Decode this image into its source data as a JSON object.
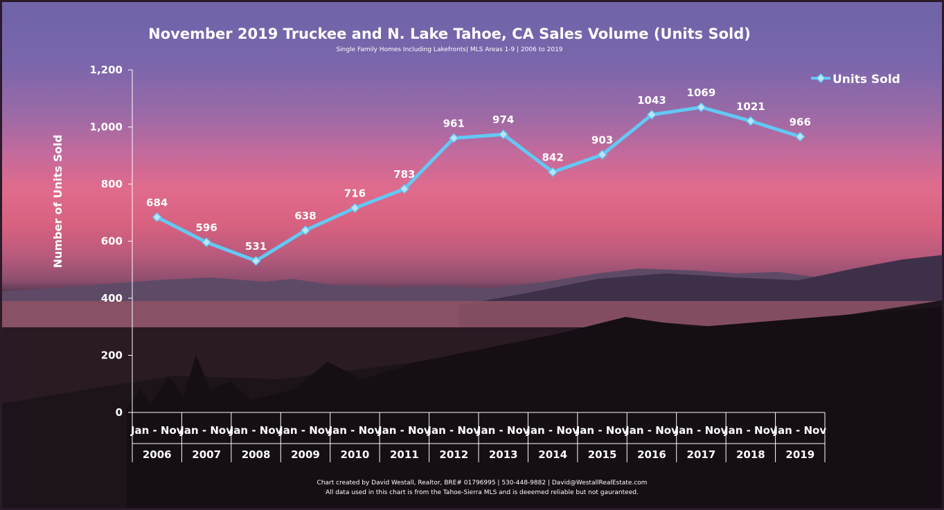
{
  "colors": {
    "line": "#63c8f4",
    "marker_fill": "#b9e6f8",
    "marker_stroke": "#63c8f4",
    "axis": "#ffffff"
  },
  "chart_data": {
    "type": "line",
    "title": "November 2019 Truckee and N. Lake Tahoe, CA Sales Volume (Units Sold)",
    "subtitle": "Single Family Homes Including Lakefronts| MLS Areas 1-9 | 2006 to 2019",
    "ylabel": "Number of Units Sold",
    "xlabel": "",
    "ylim": [
      0,
      1200
    ],
    "yticks": [
      0,
      200,
      400,
      600,
      800,
      1000,
      1200
    ],
    "ytick_labels": [
      "0",
      "200",
      "400",
      "600",
      "800",
      "1,000",
      "1,200"
    ],
    "period_label": "Jan - Nov",
    "categories": [
      "2006",
      "2007",
      "2008",
      "2009",
      "2010",
      "2011",
      "2012",
      "2013",
      "2014",
      "2015",
      "2016",
      "2017",
      "2018",
      "2019"
    ],
    "series": [
      {
        "name": "Units Sold",
        "marker": "diamond",
        "values": [
          684,
          596,
          531,
          638,
          716,
          783,
          961,
          974,
          842,
          903,
          1043,
          1069,
          1021,
          966
        ]
      }
    ],
    "legend": "top-right",
    "grid": false
  },
  "footer": {
    "line1": "Chart created by David Westall, Realtor, BRE# 01796995 | 530-448-9882 | David@WestallRealEstate.com",
    "line2": "All data used in this chart is from the Tahoe-Sierra MLS and is deeemed reliable but  not gauranteed."
  }
}
